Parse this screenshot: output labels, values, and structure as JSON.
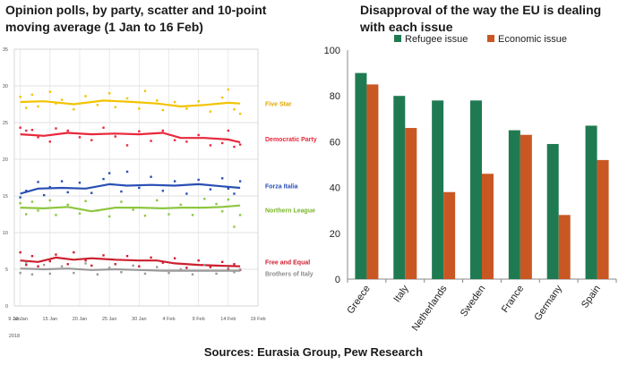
{
  "source_note": "Sources: Eurasia Group, Pew Research",
  "chart_data": [
    {
      "type": "scatter",
      "title": "Opinion polls, by party, scatter and 10-point moving average (1 Jan to 16 Feb)",
      "ylim": [
        0,
        35
      ],
      "yticks": [
        "0",
        "5",
        "10",
        "15",
        "20",
        "25",
        "30",
        "35"
      ],
      "xticks": [
        "9 Jan 2018",
        "10 Jan",
        "15 Jan",
        "20 Jan",
        "25 Jan",
        "30 Jan",
        "4 Feb",
        "9 Feb",
        "14 Feb",
        "19 Feb"
      ],
      "xtick_days": [
        9,
        10,
        15,
        20,
        25,
        30,
        35,
        40,
        45,
        50
      ],
      "xlim_days": [
        9,
        50
      ],
      "grid": true,
      "series": [
        {
          "name": "Five Star",
          "color": "#f2c300",
          "label_color": "#e0a800",
          "avg": [
            [
              10,
              27.8
            ],
            [
              14,
              27.9
            ],
            [
              19,
              27.5
            ],
            [
              24,
              28.0
            ],
            [
              29,
              27.8
            ],
            [
              33,
              27.6
            ],
            [
              37,
              27.2
            ],
            [
              41,
              27.4
            ],
            [
              45,
              27.7
            ],
            [
              47,
              27.6
            ]
          ],
          "points": [
            [
              10,
              28.5
            ],
            [
              11,
              27.0
            ],
            [
              12,
              28.8
            ],
            [
              13,
              27.2
            ],
            [
              15,
              29.2
            ],
            [
              16,
              27.6
            ],
            [
              17,
              28.1
            ],
            [
              19,
              26.8
            ],
            [
              21,
              28.6
            ],
            [
              23,
              27.4
            ],
            [
              25,
              29.0
            ],
            [
              26,
              27.1
            ],
            [
              28,
              28.3
            ],
            [
              30,
              26.9
            ],
            [
              31,
              29.3
            ],
            [
              33,
              28.0
            ],
            [
              34,
              26.7
            ],
            [
              36,
              27.8
            ],
            [
              38,
              26.9
            ],
            [
              40,
              27.9
            ],
            [
              42,
              26.5
            ],
            [
              44,
              28.4
            ],
            [
              45,
              29.5
            ],
            [
              46,
              26.8
            ],
            [
              47,
              26.2
            ]
          ]
        },
        {
          "name": "Democratic Party",
          "color": "#e8283c",
          "label_color": "#e8283c",
          "avg": [
            [
              10,
              23.4
            ],
            [
              14,
              23.2
            ],
            [
              18,
              23.6
            ],
            [
              22,
              23.4
            ],
            [
              26,
              23.5
            ],
            [
              30,
              23.4
            ],
            [
              34,
              23.6
            ],
            [
              37,
              22.9
            ],
            [
              41,
              22.9
            ],
            [
              45,
              22.7
            ],
            [
              47,
              22.3
            ]
          ],
          "points": [
            [
              10,
              24.3
            ],
            [
              11,
              23.9
            ],
            [
              12,
              24.0
            ],
            [
              13,
              23.0
            ],
            [
              15,
              22.4
            ],
            [
              16,
              24.2
            ],
            [
              18,
              23.9
            ],
            [
              20,
              23.0
            ],
            [
              22,
              22.6
            ],
            [
              24,
              24.3
            ],
            [
              26,
              23.1
            ],
            [
              28,
              21.9
            ],
            [
              30,
              23.8
            ],
            [
              32,
              22.5
            ],
            [
              34,
              23.9
            ],
            [
              36,
              22.6
            ],
            [
              38,
              22.4
            ],
            [
              40,
              23.3
            ],
            [
              42,
              21.9
            ],
            [
              44,
              22.2
            ],
            [
              45,
              23.9
            ],
            [
              46,
              21.7
            ],
            [
              47,
              22.0
            ]
          ]
        },
        {
          "name": "Forza Italia",
          "color": "#2a4fb4",
          "label_color": "#2a4fb4",
          "avg": [
            [
              10,
              15.3
            ],
            [
              13,
              16.0
            ],
            [
              17,
              16.1
            ],
            [
              21,
              16.0
            ],
            [
              25,
              16.6
            ],
            [
              28,
              16.4
            ],
            [
              32,
              16.5
            ],
            [
              36,
              16.4
            ],
            [
              40,
              16.6
            ],
            [
              44,
              16.3
            ],
            [
              47,
              16.1
            ]
          ],
          "points": [
            [
              10,
              14.8
            ],
            [
              11,
              15.7
            ],
            [
              13,
              16.9
            ],
            [
              14,
              15.1
            ],
            [
              15,
              16.2
            ],
            [
              17,
              17.0
            ],
            [
              18,
              15.5
            ],
            [
              20,
              16.8
            ],
            [
              22,
              15.4
            ],
            [
              24,
              17.3
            ],
            [
              25,
              18.1
            ],
            [
              27,
              15.6
            ],
            [
              28,
              18.3
            ],
            [
              30,
              16.1
            ],
            [
              32,
              17.6
            ],
            [
              34,
              15.7
            ],
            [
              36,
              17.0
            ],
            [
              38,
              15.3
            ],
            [
              40,
              17.2
            ],
            [
              42,
              15.9
            ],
            [
              44,
              17.4
            ],
            [
              45,
              16.0
            ],
            [
              46,
              15.3
            ],
            [
              47,
              17.0
            ]
          ]
        },
        {
          "name": "Northern League",
          "color": "#8dc63f",
          "label_color": "#7ab52a",
          "avg": [
            [
              10,
              13.4
            ],
            [
              14,
              13.3
            ],
            [
              18,
              13.5
            ],
            [
              22,
              12.9
            ],
            [
              26,
              13.4
            ],
            [
              30,
              13.4
            ],
            [
              34,
              13.3
            ],
            [
              37,
              13.4
            ],
            [
              41,
              13.4
            ],
            [
              44,
              13.5
            ],
            [
              47,
              13.7
            ]
          ],
          "points": [
            [
              10,
              14.0
            ],
            [
              11,
              12.5
            ],
            [
              12,
              14.2
            ],
            [
              13,
              13.0
            ],
            [
              15,
              14.4
            ],
            [
              16,
              12.4
            ],
            [
              18,
              13.8
            ],
            [
              20,
              12.6
            ],
            [
              21,
              14.3
            ],
            [
              23,
              13.0
            ],
            [
              25,
              12.2
            ],
            [
              27,
              14.2
            ],
            [
              29,
              13.1
            ],
            [
              31,
              12.3
            ],
            [
              33,
              14.4
            ],
            [
              35,
              12.5
            ],
            [
              37,
              13.8
            ],
            [
              39,
              12.4
            ],
            [
              41,
              14.6
            ],
            [
              43,
              13.9
            ],
            [
              44,
              12.9
            ],
            [
              45,
              14.5
            ],
            [
              46,
              10.8
            ],
            [
              47,
              12.4
            ]
          ]
        },
        {
          "name": "Free and Equal",
          "color": "#cc1f2f",
          "label_color": "#cc1f2f",
          "avg": [
            [
              10,
              6.2
            ],
            [
              13,
              6.0
            ],
            [
              16,
              6.6
            ],
            [
              19,
              6.3
            ],
            [
              22,
              6.5
            ],
            [
              26,
              6.3
            ],
            [
              30,
              6.2
            ],
            [
              33,
              6.2
            ],
            [
              36,
              5.8
            ],
            [
              40,
              5.6
            ],
            [
              43,
              5.5
            ],
            [
              47,
              5.4
            ]
          ],
          "points": [
            [
              10,
              7.3
            ],
            [
              11,
              5.6
            ],
            [
              12,
              6.8
            ],
            [
              13,
              5.4
            ],
            [
              15,
              6.1
            ],
            [
              16,
              7.0
            ],
            [
              18,
              5.7
            ],
            [
              19,
              7.3
            ],
            [
              21,
              6.2
            ],
            [
              22,
              5.5
            ],
            [
              24,
              6.9
            ],
            [
              26,
              5.7
            ],
            [
              28,
              6.8
            ],
            [
              30,
              5.4
            ],
            [
              32,
              6.6
            ],
            [
              34,
              5.9
            ],
            [
              36,
              6.5
            ],
            [
              38,
              5.2
            ],
            [
              40,
              6.2
            ],
            [
              42,
              5.3
            ],
            [
              44,
              6.0
            ],
            [
              45,
              5.0
            ],
            [
              46,
              5.7
            ],
            [
              47,
              4.9
            ]
          ]
        },
        {
          "name": "Brothers of Italy",
          "color": "#9a9a9a",
          "label_color": "#8c8c8c",
          "avg": [
            [
              10,
              5.1
            ],
            [
              14,
              5.0
            ],
            [
              18,
              5.1
            ],
            [
              22,
              4.9
            ],
            [
              26,
              5.0
            ],
            [
              30,
              4.9
            ],
            [
              34,
              4.8
            ],
            [
              38,
              4.8
            ],
            [
              42,
              4.8
            ],
            [
              46,
              4.8
            ],
            [
              47,
              4.8
            ]
          ],
          "points": [
            [
              10,
              4.5
            ],
            [
              11,
              5.9
            ],
            [
              12,
              4.3
            ],
            [
              14,
              5.6
            ],
            [
              15,
              4.4
            ],
            [
              17,
              5.4
            ],
            [
              19,
              4.5
            ],
            [
              21,
              5.8
            ],
            [
              23,
              4.3
            ],
            [
              25,
              5.2
            ],
            [
              27,
              4.6
            ],
            [
              29,
              5.5
            ],
            [
              31,
              4.4
            ],
            [
              33,
              5.3
            ],
            [
              35,
              4.5
            ],
            [
              37,
              5.0
            ],
            [
              39,
              4.3
            ],
            [
              41,
              5.6
            ],
            [
              43,
              4.4
            ],
            [
              45,
              5.2
            ],
            [
              46,
              4.6
            ],
            [
              47,
              5.0
            ]
          ]
        }
      ]
    },
    {
      "type": "bar",
      "title": "Disapproval of the way the EU is dealing with each issue",
      "categories": [
        "Greece",
        "Italy",
        "Netherlands",
        "Sweden",
        "France",
        "Germany",
        "Spain"
      ],
      "ylim": [
        0,
        100
      ],
      "yticks": [
        0,
        20,
        40,
        60,
        80,
        100
      ],
      "legend_position": "top",
      "series": [
        {
          "name": "Refugee issue",
          "color": "#1f7a52",
          "values": [
            90,
            80,
            78,
            78,
            65,
            59,
            67
          ]
        },
        {
          "name": "Economic issue",
          "color": "#c95724",
          "values": [
            85,
            66,
            38,
            46,
            63,
            28,
            52
          ]
        }
      ]
    }
  ]
}
